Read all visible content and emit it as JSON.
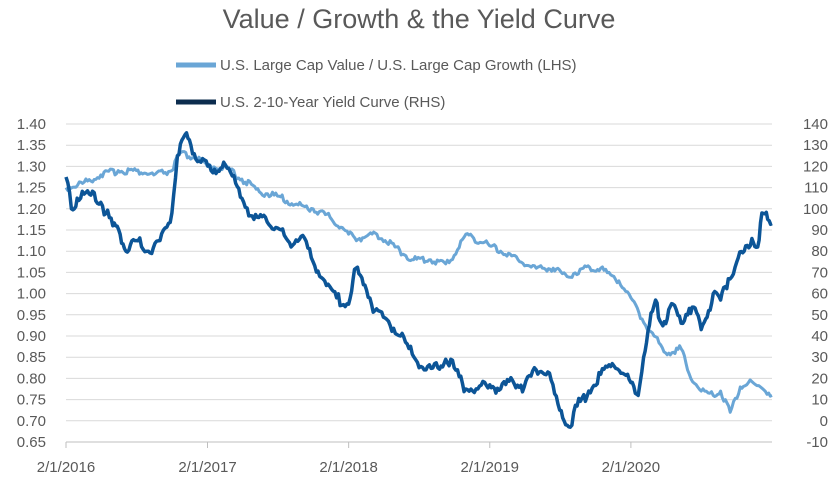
{
  "chart_data": {
    "type": "line",
    "title": "Value / Growth & the Yield Curve",
    "xlabel": "",
    "ylabel": "",
    "x_tick_labels": [
      "2/1/2016",
      "2/1/2017",
      "2/1/2018",
      "2/1/2019",
      "2/1/2020"
    ],
    "xlim": [
      "2016-02-01",
      "2021-01-31"
    ],
    "y_left": {
      "ylim": [
        0.65,
        1.4
      ],
      "ticks": [
        "0.65",
        "0.70",
        "0.75",
        "0.80",
        "0.85",
        "0.90",
        "0.95",
        "1.00",
        "1.05",
        "1.10",
        "1.15",
        "1.20",
        "1.25",
        "1.30",
        "1.35",
        "1.40"
      ]
    },
    "y_right": {
      "ylim": [
        -10,
        140
      ],
      "ticks": [
        "-10",
        "0",
        "10",
        "20",
        "30",
        "40",
        "50",
        "60",
        "70",
        "80",
        "90",
        "100",
        "110",
        "120",
        "130",
        "140"
      ]
    },
    "grid": "horizontal",
    "legend_position": "top",
    "series": [
      {
        "name": "U.S. Large Cap Value / U.S. Large Cap Growth (LHS)",
        "axis": "left",
        "color": "#6aa6d6",
        "points": [
          [
            "2016-02-01",
            1.25
          ],
          [
            "2016-03-15",
            1.26
          ],
          [
            "2016-05-01",
            1.28
          ],
          [
            "2016-06-15",
            1.29
          ],
          [
            "2016-08-01",
            1.29
          ],
          [
            "2016-09-15",
            1.28
          ],
          [
            "2016-11-01",
            1.29
          ],
          [
            "2016-11-20",
            1.33
          ],
          [
            "2017-01-01",
            1.32
          ],
          [
            "2017-02-01",
            1.3
          ],
          [
            "2017-03-15",
            1.3
          ],
          [
            "2017-05-01",
            1.27
          ],
          [
            "2017-06-15",
            1.24
          ],
          [
            "2017-08-01",
            1.23
          ],
          [
            "2017-09-15",
            1.21
          ],
          [
            "2017-11-01",
            1.2
          ],
          [
            "2017-12-15",
            1.18
          ],
          [
            "2018-02-01",
            1.14
          ],
          [
            "2018-03-01",
            1.13
          ],
          [
            "2018-04-15",
            1.14
          ],
          [
            "2018-06-01",
            1.11
          ],
          [
            "2018-07-15",
            1.08
          ],
          [
            "2018-09-01",
            1.08
          ],
          [
            "2018-10-10",
            1.07
          ],
          [
            "2018-11-01",
            1.09
          ],
          [
            "2018-12-01",
            1.14
          ],
          [
            "2019-01-15",
            1.12
          ],
          [
            "2019-03-01",
            1.1
          ],
          [
            "2019-04-15",
            1.08
          ],
          [
            "2019-06-01",
            1.06
          ],
          [
            "2019-07-15",
            1.06
          ],
          [
            "2019-08-20",
            1.04
          ],
          [
            "2019-10-01",
            1.06
          ],
          [
            "2019-11-15",
            1.06
          ],
          [
            "2020-01-01",
            1.03
          ],
          [
            "2020-02-01",
            0.99
          ],
          [
            "2020-03-01",
            0.94
          ],
          [
            "2020-04-01",
            0.9
          ],
          [
            "2020-05-01",
            0.86
          ],
          [
            "2020-06-10",
            0.87
          ],
          [
            "2020-07-01",
            0.81
          ],
          [
            "2020-08-01",
            0.77
          ],
          [
            "2020-09-01",
            0.76
          ],
          [
            "2020-09-20",
            0.77
          ],
          [
            "2020-10-15",
            0.72
          ],
          [
            "2020-11-10",
            0.78
          ],
          [
            "2020-12-01",
            0.79
          ],
          [
            "2021-01-01",
            0.78
          ],
          [
            "2021-01-31",
            0.76
          ]
        ]
      },
      {
        "name": "U.S. 2-10-Year Yield Curve (RHS)",
        "axis": "right",
        "color": "#0c5597",
        "points": [
          [
            "2016-02-01",
            115
          ],
          [
            "2016-02-15",
            100
          ],
          [
            "2016-03-01",
            105
          ],
          [
            "2016-04-01",
            107
          ],
          [
            "2016-05-01",
            103
          ],
          [
            "2016-06-01",
            92
          ],
          [
            "2016-06-20",
            88
          ],
          [
            "2016-07-05",
            80
          ],
          [
            "2016-08-01",
            85
          ],
          [
            "2016-09-01",
            80
          ],
          [
            "2016-10-01",
            85
          ],
          [
            "2016-11-01",
            98
          ],
          [
            "2016-11-15",
            125
          ],
          [
            "2016-12-05",
            135
          ],
          [
            "2016-12-20",
            130
          ],
          [
            "2017-01-15",
            122
          ],
          [
            "2017-02-15",
            117
          ],
          [
            "2017-03-15",
            122
          ],
          [
            "2017-04-15",
            112
          ],
          [
            "2017-05-01",
            105
          ],
          [
            "2017-06-01",
            95
          ],
          [
            "2017-07-01",
            96
          ],
          [
            "2017-08-01",
            91
          ],
          [
            "2017-09-01",
            84
          ],
          [
            "2017-10-01",
            87
          ],
          [
            "2017-11-01",
            75
          ],
          [
            "2017-12-01",
            66
          ],
          [
            "2018-01-01",
            58
          ],
          [
            "2018-02-01",
            55
          ],
          [
            "2018-02-20",
            72
          ],
          [
            "2018-03-15",
            64
          ],
          [
            "2018-04-10",
            52
          ],
          [
            "2018-05-15",
            47
          ],
          [
            "2018-06-15",
            40
          ],
          [
            "2018-07-20",
            30
          ],
          [
            "2018-08-20",
            24
          ],
          [
            "2018-09-20",
            25
          ],
          [
            "2018-10-10",
            29
          ],
          [
            "2018-11-01",
            25
          ],
          [
            "2018-12-01",
            15
          ],
          [
            "2019-01-01",
            15
          ],
          [
            "2019-02-01",
            17
          ],
          [
            "2019-03-01",
            15
          ],
          [
            "2019-04-01",
            19
          ],
          [
            "2019-05-01",
            16
          ],
          [
            "2019-06-01",
            24
          ],
          [
            "2019-07-01",
            23
          ],
          [
            "2019-08-01",
            5
          ],
          [
            "2019-08-28",
            -3
          ],
          [
            "2019-09-15",
            7
          ],
          [
            "2019-10-15",
            14
          ],
          [
            "2019-11-15",
            22
          ],
          [
            "2019-12-15",
            27
          ],
          [
            "2020-01-15",
            22
          ],
          [
            "2020-02-01",
            18
          ],
          [
            "2020-02-20",
            12
          ],
          [
            "2020-03-05",
            30
          ],
          [
            "2020-03-20",
            45
          ],
          [
            "2020-04-05",
            57
          ],
          [
            "2020-04-20",
            46
          ],
          [
            "2020-05-05",
            48
          ],
          [
            "2020-05-20",
            55
          ],
          [
            "2020-06-10",
            46
          ],
          [
            "2020-07-01",
            53
          ],
          [
            "2020-07-20",
            51
          ],
          [
            "2020-08-01",
            43
          ],
          [
            "2020-08-20",
            52
          ],
          [
            "2020-09-01",
            60
          ],
          [
            "2020-09-20",
            57
          ],
          [
            "2020-10-10",
            67
          ],
          [
            "2020-11-01",
            75
          ],
          [
            "2020-11-20",
            80
          ],
          [
            "2020-12-10",
            86
          ],
          [
            "2020-12-25",
            82
          ],
          [
            "2021-01-05",
            98
          ],
          [
            "2021-01-20",
            95
          ],
          [
            "2021-01-31",
            93
          ]
        ]
      }
    ]
  }
}
